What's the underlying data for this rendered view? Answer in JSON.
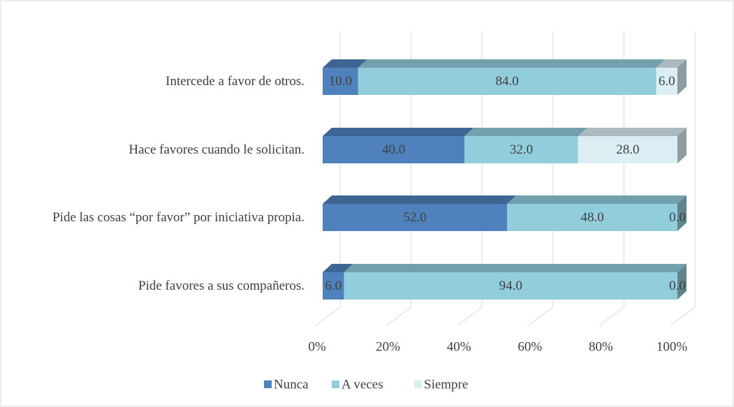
{
  "chart_data": {
    "type": "bar",
    "orientation": "horizontal",
    "stacked": true,
    "categories": [
      "Intercede a favor de otros.",
      "Hace favores cuando le solicitan.",
      "Pide las cosas “por favor” por iniciativa propia.",
      "Pide favores a sus compañeros."
    ],
    "series": [
      {
        "name": "Nunca",
        "color": "#4f81bd",
        "values": [
          10,
          40,
          52,
          6
        ],
        "value_labels": [
          "10.0",
          "40.0",
          "52.0",
          "6.0"
        ]
      },
      {
        "name": "A veces",
        "color": "#92cddc",
        "values": [
          84,
          32,
          48,
          94
        ],
        "value_labels": [
          "84.0",
          "32.0",
          "48.0",
          "94.0"
        ]
      },
      {
        "name": "Siempre",
        "color": "#dbeef4",
        "values": [
          6,
          28,
          0,
          0
        ],
        "value_labels": [
          "6.0",
          "28.0",
          "0.0",
          "0.0"
        ]
      }
    ],
    "xlim": [
      0,
      100
    ],
    "xticks": [
      {
        "value": 0,
        "label": "0%"
      },
      {
        "value": 20,
        "label": "20%"
      },
      {
        "value": 40,
        "label": "40%"
      },
      {
        "value": 60,
        "label": "60%"
      },
      {
        "value": 80,
        "label": "80%"
      },
      {
        "value": 100,
        "label": "100%"
      }
    ],
    "grid": true,
    "legend": "bottom"
  }
}
